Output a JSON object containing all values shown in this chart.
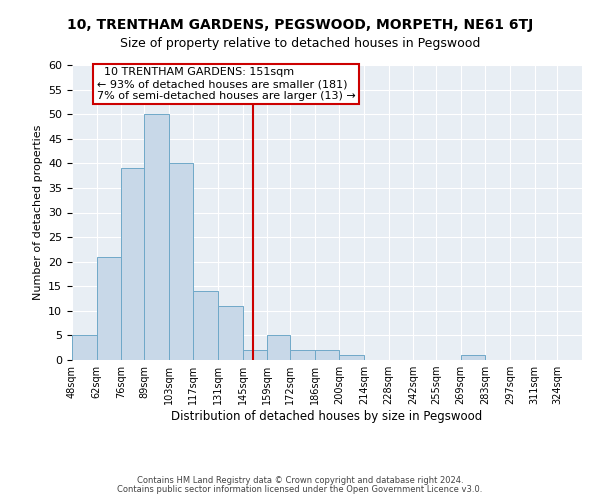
{
  "title": "10, TRENTHAM GARDENS, PEGSWOOD, MORPETH, NE61 6TJ",
  "subtitle": "Size of property relative to detached houses in Pegswood",
  "xlabel": "Distribution of detached houses by size in Pegswood",
  "ylabel": "Number of detached properties",
  "bins": [
    48,
    62,
    76,
    89,
    103,
    117,
    131,
    145,
    159,
    172,
    186,
    200,
    214,
    228,
    242,
    255,
    269,
    283,
    297,
    311,
    324
  ],
  "counts": [
    5,
    21,
    39,
    50,
    40,
    14,
    11,
    2,
    5,
    2,
    2,
    1,
    0,
    0,
    0,
    0,
    1,
    0,
    0,
    0,
    0
  ],
  "bar_color": "#c8d8e8",
  "bar_edge_color": "#6fa8c8",
  "property_size": 151,
  "property_line_color": "#cc0000",
  "annotation_line1": "  10 TRENTHAM GARDENS: 151sqm",
  "annotation_line2": "← 93% of detached houses are smaller (181)",
  "annotation_line3": "7% of semi-detached houses are larger (13) →",
  "annotation_box_color": "white",
  "annotation_box_edge_color": "#cc0000",
  "ylim": [
    0,
    60
  ],
  "xlim_min": 48,
  "xlim_max": 338,
  "background_color": "#e8eef4",
  "footer_line1": "Contains HM Land Registry data © Crown copyright and database right 2024.",
  "footer_line2": "Contains public sector information licensed under the Open Government Licence v3.0.",
  "title_fontsize": 10,
  "subtitle_fontsize": 9,
  "annotation_fontsize": 8,
  "tick_fontsize": 7,
  "ylabel_fontsize": 8,
  "xlabel_fontsize": 8.5,
  "footer_fontsize": 6
}
